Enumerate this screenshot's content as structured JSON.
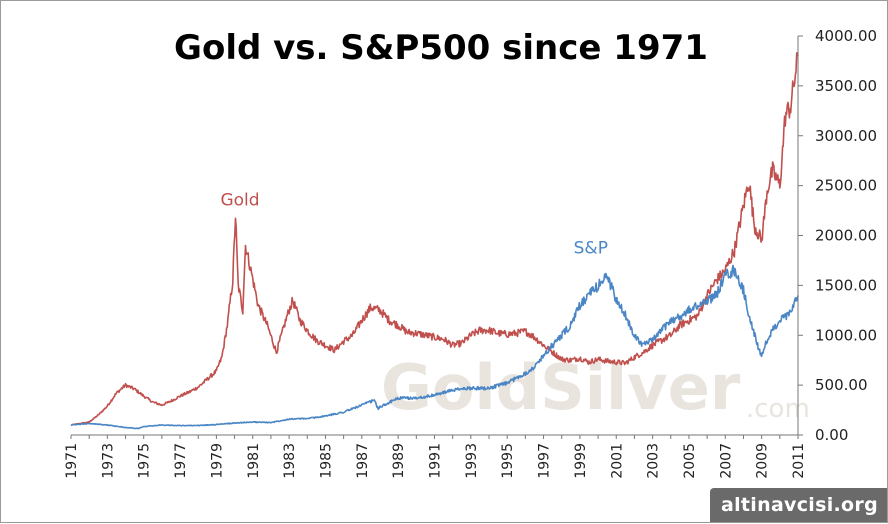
{
  "chart_data": {
    "type": "line",
    "title": "Gold vs. S&P500 since 1971",
    "xlabel": "",
    "ylabel": "",
    "xlim": [
      1971,
      2011
    ],
    "ylim": [
      0,
      4000
    ],
    "x_ticks": [
      "1971",
      "1973",
      "1975",
      "1977",
      "1979",
      "1981",
      "1983",
      "1985",
      "1987",
      "1989",
      "1991",
      "1993",
      "1995",
      "1997",
      "1999",
      "2001",
      "2003",
      "2005",
      "2007",
      "2009",
      "2011"
    ],
    "y_ticks": [
      "0.00",
      "500.00",
      "1000.00",
      "1500.00",
      "2000.00",
      "2500.00",
      "3000.00",
      "3500.00",
      "4000.00"
    ],
    "grid": false,
    "series": [
      {
        "name": "Gold",
        "color": "#c0504d",
        "x": [
          1971,
          1972,
          1972.5,
          1973,
          1973.5,
          1974,
          1974.5,
          1975,
          1975.5,
          1976,
          1976.5,
          1977,
          1977.5,
          1978,
          1978.5,
          1979,
          1979.3,
          1979.6,
          1979.9,
          1980.05,
          1980.2,
          1980.45,
          1980.6,
          1980.9,
          1981.3,
          1981.8,
          1982.3,
          1982.9,
          1983.2,
          1983.6,
          1984,
          1984.5,
          1985,
          1985.5,
          1986,
          1986.5,
          1987,
          1987.5,
          1988,
          1988.5,
          1989,
          1989.5,
          1990,
          1990.5,
          1991,
          1991.5,
          1992,
          1992.5,
          1993,
          1993.5,
          1994,
          1994.5,
          1995,
          1995.5,
          1996,
          1996.5,
          1997,
          1997.5,
          1998,
          1998.5,
          1999,
          1999.5,
          2000,
          2000.5,
          2001,
          2001.5,
          2002,
          2002.5,
          2003,
          2003.5,
          2004,
          2004.5,
          2005,
          2005.5,
          2006,
          2006.5,
          2007,
          2007.5,
          2008,
          2008.3,
          2008.6,
          2009,
          2009.3,
          2009.6,
          2010,
          2010.3,
          2010.6,
          2011
        ],
        "values": [
          100,
          130,
          200,
          290,
          420,
          500,
          460,
          390,
          330,
          300,
          340,
          390,
          430,
          480,
          560,
          640,
          780,
          1100,
          1550,
          2200,
          1500,
          1250,
          1900,
          1650,
          1300,
          1100,
          830,
          1200,
          1350,
          1150,
          1050,
          950,
          900,
          850,
          940,
          1000,
          1150,
          1280,
          1250,
          1150,
          1100,
          1030,
          1020,
          1000,
          980,
          960,
          900,
          920,
          1000,
          1050,
          1050,
          1020,
          1010,
          1020,
          1040,
          980,
          900,
          830,
          760,
          750,
          770,
          730,
          760,
          740,
          730,
          720,
          780,
          830,
          900,
          950,
          1000,
          1100,
          1150,
          1200,
          1400,
          1550,
          1650,
          1850,
          2300,
          2550,
          2100,
          1950,
          2450,
          2650,
          2500,
          3200,
          3300,
          3800
        ]
      },
      {
        "name": "S&P",
        "color": "#4a86c5",
        "x": [
          1971,
          1972,
          1973,
          1974,
          1974.7,
          1975,
          1976,
          1977,
          1978,
          1979,
          1980,
          1981,
          1982,
          1983,
          1984,
          1985,
          1986,
          1987,
          1987.7,
          1987.9,
          1988,
          1989,
          1990,
          1991,
          1992,
          1993,
          1994,
          1995,
          1996,
          1996.5,
          1997,
          1997.5,
          1998,
          1998.5,
          1999,
          1999.5,
          2000,
          2000.5,
          2001,
          2001.5,
          2002,
          2002.5,
          2003,
          2003.5,
          2004,
          2004.5,
          2005,
          2005.5,
          2006,
          2006.5,
          2007,
          2007.5,
          2008,
          2008.3,
          2008.7,
          2009,
          2009.3,
          2009.6,
          2010,
          2010.5,
          2011
        ],
        "values": [
          100,
          115,
          100,
          75,
          65,
          85,
          100,
          95,
          95,
          105,
          120,
          130,
          125,
          160,
          165,
          190,
          230,
          300,
          350,
          260,
          280,
          370,
          370,
          400,
          450,
          470,
          470,
          520,
          620,
          680,
          800,
          900,
          1000,
          1100,
          1300,
          1400,
          1500,
          1600,
          1350,
          1200,
          1000,
          900,
          950,
          1050,
          1150,
          1180,
          1250,
          1300,
          1350,
          1400,
          1600,
          1650,
          1450,
          1200,
          950,
          780,
          950,
          1050,
          1150,
          1200,
          1400
        ]
      }
    ]
  },
  "watermark": {
    "main": "GoldSilver",
    "suffix": ".com"
  },
  "badge": {
    "text": "altinavcisi.org"
  }
}
